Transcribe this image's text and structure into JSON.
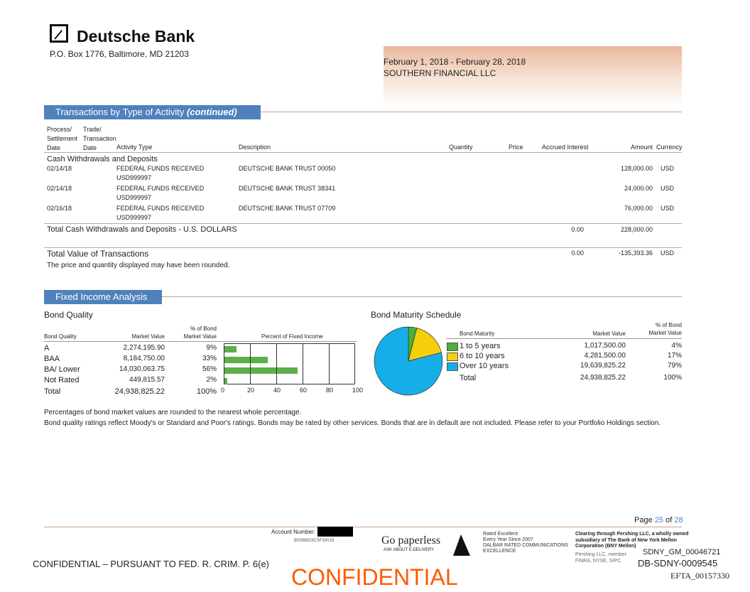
{
  "header": {
    "bank_name": "Deutsche Bank",
    "address": "P.O. Box 1776, Baltimore, MD 21203",
    "period": "February 1, 2018 - February 28, 2018",
    "client": "SOUTHERN FINANCIAL LLC"
  },
  "transactions": {
    "title": "Transactions by Type of Activity",
    "title_suffix": "(continued)",
    "columns": {
      "process_date": "Process/\nSettlement\nDate",
      "trade_date": "Trade/\nTransaction\nDate",
      "activity_type": "Activity Type",
      "description": "Description",
      "quantity": "Quantity",
      "price": "Price",
      "accrued_interest": "Accrued Interest",
      "amount": "Amount",
      "currency": "Currency"
    },
    "group": "Cash Withdrawals and Deposits",
    "rows": [
      {
        "date": "02/14/18",
        "activity": "FEDERAL FUNDS RECEIVED",
        "activity_sub": "USD999997",
        "description": "DEUTSCHE BANK TRUST 00050",
        "amount": "128,000.00",
        "currency": "USD"
      },
      {
        "date": "02/14/18",
        "activity": "FEDERAL FUNDS RECEIVED",
        "activity_sub": "USD999997",
        "description": "DEUTSCHE BANK TRUST 38341",
        "amount": "24,000.00",
        "currency": "USD"
      },
      {
        "date": "02/16/18",
        "activity": "FEDERAL FUNDS RECEIVED",
        "activity_sub": "USD999997",
        "description": "DEUTSCHE BANK TRUST 07709",
        "amount": "76,000.00",
        "currency": "USD"
      }
    ],
    "group_total": {
      "label": "Total Cash Withdrawals and Deposits - U.S. DOLLARS",
      "accrued": "0.00",
      "amount": "228,000.00"
    },
    "grand_total": {
      "label": "Total Value of Transactions",
      "accrued": "0.00",
      "amount": "-135,393.36",
      "currency": "USD"
    },
    "note": "The price and quantity displayed may have been rounded."
  },
  "fixed_income": {
    "title": "Fixed Income Analysis",
    "quality": {
      "title": "Bond Quality",
      "col_quality": "Bond Quality",
      "col_value": "Market Value",
      "col_pct": "% of Bond\nMarket Value",
      "col_chart": "Percent of Fixed Income",
      "rows": [
        {
          "label": "A",
          "value": "2,274,195.90",
          "pct": "9%",
          "pct_num": 9
        },
        {
          "label": "BAA",
          "value": "8,184,750.00",
          "pct": "33%",
          "pct_num": 33
        },
        {
          "label": "BA/ Lower",
          "value": "14,030,063.75",
          "pct": "56%",
          "pct_num": 56
        },
        {
          "label": "Not Rated",
          "value": "449,815.57",
          "pct": "2%",
          "pct_num": 2
        }
      ],
      "total": {
        "label": "Total",
        "value": "24,938,825.22",
        "pct": "100%"
      },
      "axis_ticks": [
        "0",
        "20",
        "40",
        "60",
        "80",
        "100"
      ]
    },
    "maturity": {
      "title": "Bond Maturity Schedule",
      "col_maturity": "Bond Maturity",
      "col_value": "Market Value",
      "col_pct": "% of Bond\nMarket Value",
      "rows": [
        {
          "label": "1 to 5 years",
          "value": "1,017,500.00",
          "pct": "4%",
          "pct_num": 4,
          "color": "#4caf3a"
        },
        {
          "label": "6 to 10 years",
          "value": "4,281,500.00",
          "pct": "17%",
          "pct_num": 17,
          "color": "#f5d00a"
        },
        {
          "label": "Over 10 years",
          "value": "19,639,825.22",
          "pct": "79%",
          "pct_num": 79,
          "color": "#16aee8"
        }
      ],
      "total": {
        "label": "Total",
        "value": "24,938,825.22",
        "pct": "100%"
      }
    },
    "notes": [
      "Percentages of bond market values are rounded to the nearest whole percentage.",
      "Bond quality ratings reflect Moody's or Standard and Poor's ratings.  Bonds may be rated by other services. Bonds that are in default are not included.  Please refer to your Portfolio Holdings section."
    ]
  },
  "footer": {
    "page_label": "Page",
    "page": "25",
    "of": "of",
    "total_pages": "28",
    "account_label": "Account Number:",
    "account_code": "B0098823CSF30018",
    "paperless": "Go paperless",
    "paperless_sub": "ASK ABOUT E-DELIVERY",
    "rated": "Rated Excellent\nEvery Year Since 2007\nDALBAR RATED COMMUNICATIONS\nEXCELLENCE",
    "clearing": "Clearing through Pershing LLC, a wholly owned\nsubsidiary of The Bank of New York Mellon\nCorporation (BNY Mellon)",
    "pershing": "Pershing LLC, member FINRA, NYSE, SIPC",
    "confidential_left": "CONFIDENTIAL – PURSUANT TO FED. R. CRIM. P. 6(e)",
    "confidential_stamp": "CONFIDENTIAL",
    "bates1": "SDNY_GM_00046721",
    "bates2": "DB-SDNY-0009545",
    "bates3": "EFTA_00157330"
  },
  "colors": {
    "accent": "#4f81bd",
    "rule": "#c9a58c",
    "stamp": "#ff5a00"
  }
}
